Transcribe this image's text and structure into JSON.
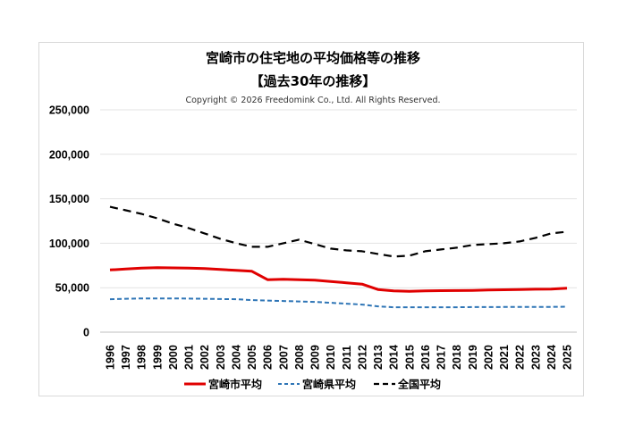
{
  "chart_data": {
    "type": "line",
    "title": "宮崎市の住宅地の平均価格等の推移",
    "subtitle": "【過去30年の推移】",
    "copyright": "Copyright © 2026 Freedomink Co., Ltd. All Rights Reserved.",
    "xlabel": "",
    "ylabel": "",
    "ylim": [
      0,
      250000
    ],
    "yticks": [
      "0",
      "50,000",
      "100,000",
      "150,000",
      "200,000",
      "250,000"
    ],
    "grid": true,
    "legend_position": "bottom",
    "x": [
      "1996",
      "1997",
      "1998",
      "1999",
      "2000",
      "2001",
      "2002",
      "2003",
      "2004",
      "2005",
      "2006",
      "2007",
      "2008",
      "2009",
      "2010",
      "2011",
      "2012",
      "2013",
      "2014",
      "2015",
      "2016",
      "2017",
      "2018",
      "2019",
      "2020",
      "2021",
      "2022",
      "2023",
      "2024",
      "2025"
    ],
    "series": [
      {
        "name": "宮崎市平均",
        "color": "#e00000",
        "style": "solid",
        "values": [
          70000,
          71000,
          72000,
          72500,
          72300,
          72000,
          71500,
          70500,
          69500,
          68500,
          59000,
          59500,
          59000,
          58500,
          57000,
          55500,
          54000,
          48000,
          46500,
          46000,
          46500,
          46700,
          46800,
          47000,
          47500,
          47700,
          48000,
          48300,
          48500,
          49500
        ]
      },
      {
        "name": "宮崎県平均",
        "color": "#2e75b6",
        "style": "dashed",
        "values": [
          37000,
          37500,
          38000,
          38000,
          38000,
          37800,
          37500,
          37200,
          37000,
          36000,
          35500,
          35000,
          34500,
          34000,
          33000,
          32000,
          31000,
          29000,
          28000,
          28000,
          28000,
          28000,
          28000,
          28200,
          28200,
          28300,
          28300,
          28300,
          28400,
          28600
        ]
      },
      {
        "name": "全国平均",
        "color": "#000000",
        "style": "dashed",
        "values": [
          141000,
          137000,
          133000,
          128000,
          122000,
          117000,
          111000,
          105000,
          100000,
          96000,
          96000,
          100000,
          104000,
          99000,
          94000,
          92000,
          91000,
          88000,
          85000,
          86000,
          91000,
          93000,
          95000,
          98000,
          99000,
          100000,
          102000,
          106000,
          111000,
          113000
        ]
      }
    ]
  }
}
